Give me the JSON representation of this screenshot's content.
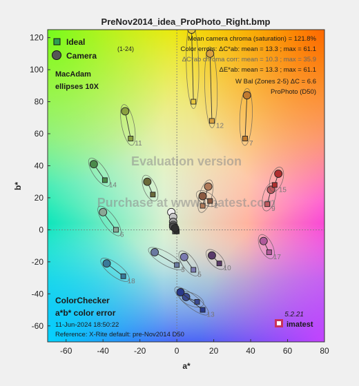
{
  "chart_data": {
    "type": "scatter",
    "title": "PreNov2014_idea_ProPhoto_Right.bmp",
    "xlabel": "a*",
    "ylabel": "b*",
    "xlim": [
      -70,
      80
    ],
    "ylim": [
      -70,
      125
    ],
    "xticks": [
      -60,
      -40,
      -20,
      0,
      20,
      40,
      60,
      80
    ],
    "yticks": [
      -60,
      -40,
      -20,
      0,
      20,
      40,
      60,
      80,
      100,
      120
    ],
    "grid": false,
    "legend": {
      "placement": "top-left",
      "entries": [
        "Ideal",
        "Camera"
      ],
      "range_label": "(1-24)",
      "note_line1": "MacAdam",
      "note_line2": "ellipses 10X"
    },
    "stats": {
      "line1": "Mean camera chroma (saturation) = 121.8%",
      "line2": "Color errors:  ΔC*ab:  mean = 13.3 ;  max = 61.1",
      "line3": "ΔC*ab chroma corr:  mean = 10.3 ;  max = 35.9",
      "line4": "ΔE*ab:  mean = 13.3 ;  max = 61.1",
      "line5": "W Bal (Zones 2-5) ΔC = 6.6",
      "line6": "ProPhoto (D50)"
    },
    "watermarks": [
      "Evaluation version",
      "Purchase at www.imatest.com"
    ],
    "footer": {
      "line1": "ColorChecker",
      "line2": "a*b* color error",
      "date": "11-Jun-2024 18:50:22",
      "reference": "Reference: X-Rite default:  pre-Nov2014  D50",
      "version": "5.2.21",
      "brand": "imatest"
    },
    "patches": [
      {
        "id": 1,
        "label": "",
        "ideal": [
          14,
          15
        ],
        "camera": [
          17,
          27
        ],
        "color": "#b07a5a"
      },
      {
        "id": 2,
        "label": "2",
        "ideal": [
          18,
          18
        ],
        "camera": [
          14,
          21
        ],
        "color": "#8a5a42"
      },
      {
        "id": 3,
        "label": "3",
        "ideal": [
          0,
          -22
        ],
        "camera": [
          -12,
          -14
        ],
        "color": "#6a7aa0"
      },
      {
        "id": 4,
        "label": "",
        "ideal": [
          -13,
          22
        ],
        "camera": [
          -16,
          30
        ],
        "color": "#6a6a3a"
      },
      {
        "id": 5,
        "label": "5",
        "ideal": [
          9,
          -25
        ],
        "camera": [
          4,
          -17
        ],
        "color": "#7a7ab0"
      },
      {
        "id": 6,
        "label": "6",
        "ideal": [
          -33,
          0
        ],
        "camera": [
          -40,
          11
        ],
        "color": "#8aa896"
      },
      {
        "id": 7,
        "label": "7",
        "ideal": [
          37,
          57
        ],
        "camera": [
          38,
          84
        ],
        "color": "#c07a30"
      },
      {
        "id": 8,
        "label": "",
        "ideal": [
          11,
          -45
        ],
        "camera": [
          5,
          -42
        ],
        "color": "#3a4a90"
      },
      {
        "id": 9,
        "label": "9",
        "ideal": [
          49,
          16
        ],
        "camera": [
          51,
          25
        ],
        "color": "#c05a60"
      },
      {
        "id": 10,
        "label": "10",
        "ideal": [
          23,
          -21
        ],
        "camera": [
          19,
          -16
        ],
        "color": "#5a3a6a"
      },
      {
        "id": 11,
        "label": "11",
        "ideal": [
          -25,
          57
        ],
        "camera": [
          -28,
          74
        ],
        "color": "#8aa040"
      },
      {
        "id": 12,
        "label": "12",
        "ideal": [
          19,
          68
        ],
        "camera": [
          18,
          110
        ],
        "color": "#d8a040"
      },
      {
        "id": 13,
        "label": "13",
        "ideal": [
          14,
          -50
        ],
        "camera": [
          2,
          -39
        ],
        "color": "#2a3a8a"
      },
      {
        "id": 14,
        "label": "14",
        "ideal": [
          -39,
          31
        ],
        "camera": [
          -45,
          41
        ],
        "color": "#4a8a4a"
      },
      {
        "id": 15,
        "label": "15",
        "ideal": [
          53,
          28
        ],
        "camera": [
          55,
          35
        ],
        "color": "#b03030"
      },
      {
        "id": 16,
        "label": "",
        "ideal": [
          9,
          80
        ],
        "camera": [
          8,
          125
        ],
        "color": "#e8c840"
      },
      {
        "id": 17,
        "label": "17",
        "ideal": [
          50,
          -14
        ],
        "camera": [
          47,
          -7
        ],
        "color": "#b05a9a"
      },
      {
        "id": 18,
        "label": "18",
        "ideal": [
          -29,
          -29
        ],
        "camera": [
          -38,
          -21
        ],
        "color": "#3a7a9a"
      },
      {
        "id": 19,
        "label": "",
        "ideal": [
          -1,
          2
        ],
        "camera": [
          -3,
          11
        ],
        "color": "#f0f0f0"
      },
      {
        "id": 20,
        "label": "",
        "ideal": [
          -1,
          1
        ],
        "camera": [
          -2,
          8
        ],
        "color": "#c8c8c8"
      },
      {
        "id": 21,
        "label": "",
        "ideal": [
          -1,
          0
        ],
        "camera": [
          -2,
          5
        ],
        "color": "#a0a0a0"
      },
      {
        "id": 22,
        "label": "",
        "ideal": [
          -1,
          -1
        ],
        "camera": [
          -2,
          3
        ],
        "color": "#787878"
      },
      {
        "id": 23,
        "label": "",
        "ideal": [
          -1,
          -1
        ],
        "camera": [
          -2,
          2
        ],
        "color": "#505050"
      },
      {
        "id": 24,
        "label": "",
        "ideal": [
          0,
          -1
        ],
        "camera": [
          -1,
          1
        ],
        "color": "#303030"
      }
    ]
  }
}
